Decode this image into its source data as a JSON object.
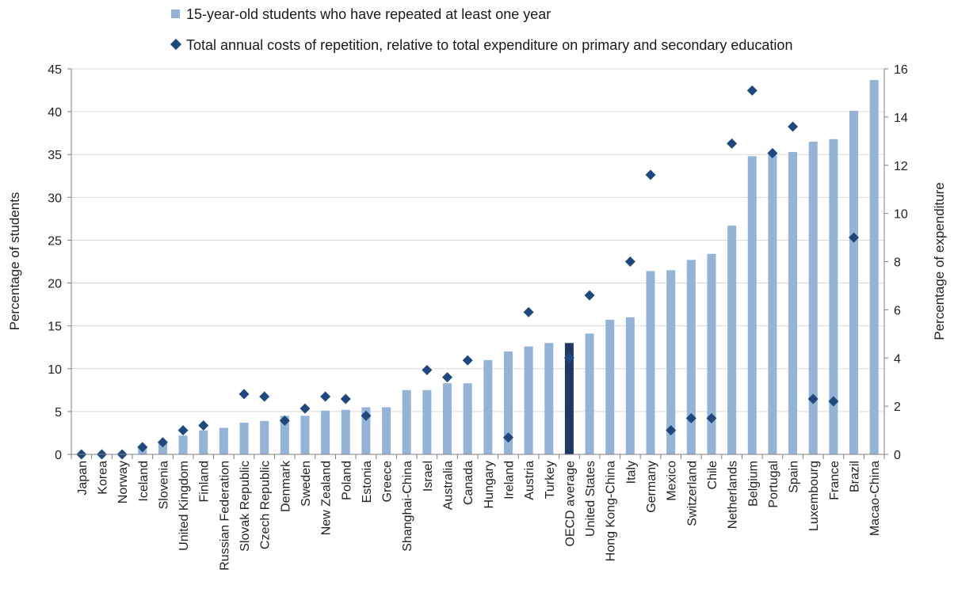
{
  "chart_data": {
    "type": "bar",
    "categories": [
      "Japan",
      "Korea",
      "Norway",
      "Iceland",
      "Slovenia",
      "United Kingdom",
      "Finland",
      "Russian Federation",
      "Slovak Republic",
      "Czech Republic",
      "Denmark",
      "Sweden",
      "New Zealand",
      "Poland",
      "Estonia",
      "Greece",
      "Shanghai-China",
      "Israel",
      "Australia",
      "Canada",
      "Hungary",
      "Ireland",
      "Austria",
      "Turkey",
      "OECD average",
      "United States",
      "Hong Kong-China",
      "Italy",
      "Germany",
      "Mexico",
      "Switzerland",
      "Chile",
      "Netherlands",
      "Belgium",
      "Portugal",
      "Spain",
      "Luxembourg",
      "France",
      "Brazil",
      "Macao-China"
    ],
    "highlight_category": "OECD average",
    "series": [
      {
        "name": "15-year-old students who have repeated at least one year",
        "kind": "bar",
        "axis": "left",
        "values": [
          0,
          0,
          0,
          1.0,
          1.5,
          2.2,
          2.8,
          3.1,
          3.7,
          3.9,
          4.5,
          4.5,
          5.1,
          5.2,
          5.5,
          5.5,
          7.5,
          7.5,
          8.3,
          8.3,
          11.0,
          12.0,
          12.6,
          13.0,
          13.0,
          14.1,
          15.7,
          16.0,
          21.4,
          21.5,
          22.7,
          23.4,
          26.7,
          34.8,
          35.3,
          35.3,
          36.5,
          36.8,
          40.1,
          43.7
        ]
      },
      {
        "name": "Total annual costs of repetition, relative to total expenditure on primary and secondary education",
        "kind": "marker",
        "axis": "right",
        "values": [
          0,
          0,
          0,
          0.3,
          0.5,
          1.0,
          1.2,
          null,
          2.5,
          2.4,
          1.4,
          1.9,
          2.4,
          2.3,
          1.6,
          null,
          null,
          3.5,
          3.2,
          3.9,
          null,
          0.7,
          5.9,
          null,
          4.0,
          6.6,
          null,
          8.0,
          11.6,
          1.0,
          1.5,
          1.5,
          12.9,
          15.1,
          12.5,
          13.6,
          2.3,
          2.2,
          9.0,
          null
        ]
      }
    ],
    "ylabel": "Percentage of students",
    "y2label": "Percentage of expenditure",
    "ylim": [
      0,
      45
    ],
    "y2lim": [
      0,
      16
    ],
    "yticks": [
      0,
      5,
      10,
      15,
      20,
      25,
      30,
      35,
      40,
      45
    ],
    "y2ticks": [
      0,
      2,
      4,
      6,
      8,
      10,
      12,
      14,
      16
    ],
    "grid": true,
    "legend_position": "top",
    "colors": {
      "bar": "#95b3d7",
      "highlight_bar": "#1f3864",
      "marker": "#1f497d",
      "grid": "#d9d9d9",
      "axis": "#7f7f7f"
    }
  }
}
